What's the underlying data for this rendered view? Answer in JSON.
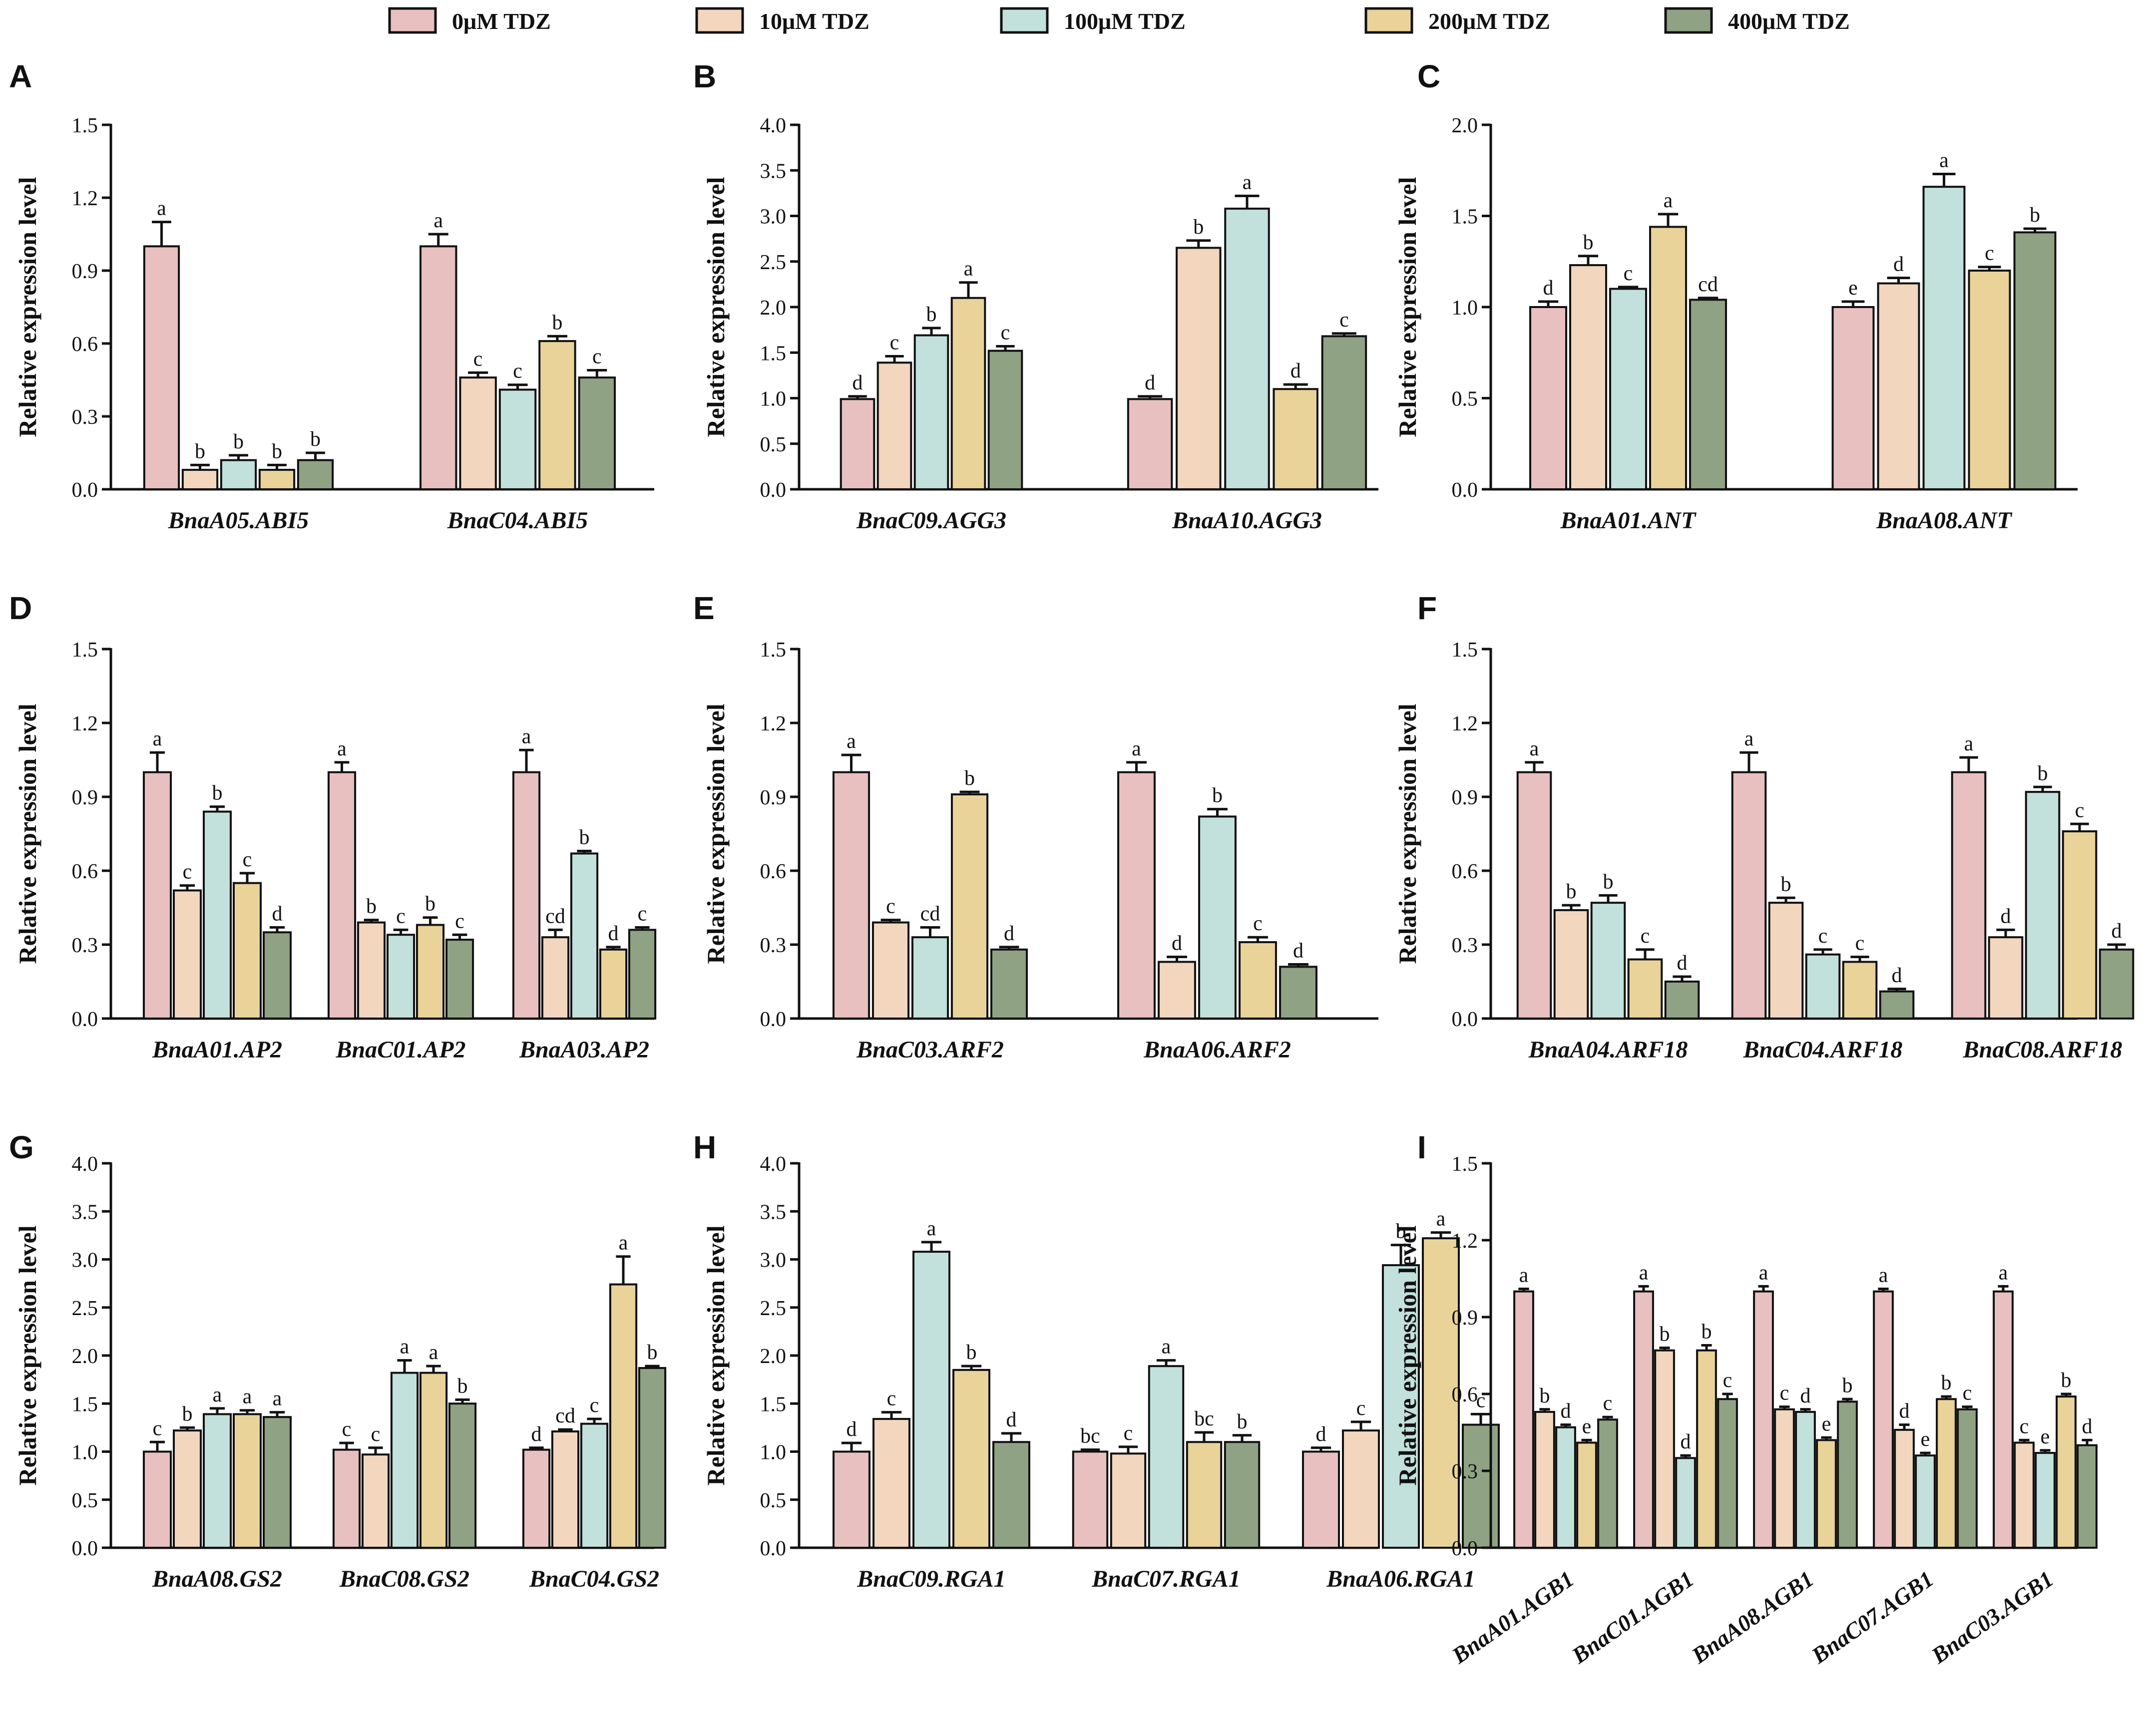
{
  "legend": [
    {
      "label": "0μM TDZ",
      "color": "#e8c0bf"
    },
    {
      "label": "10μM TDZ",
      "color": "#f2d6bd"
    },
    {
      "label": "100μM TDZ",
      "color": "#c2e0dc"
    },
    {
      "label": "200μM TDZ",
      "color": "#e9d399"
    },
    {
      "label": "400μM TDZ",
      "color": "#8fa283"
    }
  ],
  "chart_data": [
    {
      "panel": "A",
      "type": "bar",
      "ylabel": "Relative expression level",
      "ylim": [
        0,
        1.5
      ],
      "yticks": [
        "0.0",
        "0.3",
        "0.6",
        "0.9",
        "1.2",
        "1.5"
      ],
      "categories": [
        "BnaA05.ABI5",
        "BnaC04.ABI5"
      ],
      "rotated_labels": false,
      "values": [
        [
          1.0,
          0.08,
          0.12,
          0.08,
          0.12
        ],
        [
          1.0,
          0.46,
          0.41,
          0.61,
          0.46
        ]
      ],
      "errors": [
        [
          0.1,
          0.02,
          0.02,
          0.02,
          0.03
        ],
        [
          0.05,
          0.02,
          0.02,
          0.02,
          0.03
        ]
      ],
      "letters": [
        [
          "a",
          "b",
          "b",
          "b",
          "b"
        ],
        [
          "a",
          "c",
          "c",
          "b",
          "c"
        ]
      ]
    },
    {
      "panel": "B",
      "type": "bar",
      "ylabel": "Relative expression level",
      "ylim": [
        0,
        4.0
      ],
      "yticks": [
        "0.0",
        "0.5",
        "1.0",
        "1.5",
        "2.0",
        "2.5",
        "3.0",
        "3.5",
        "4.0"
      ],
      "categories": [
        "BnaC09.AGG3",
        "BnaA10.AGG3"
      ],
      "rotated_labels": false,
      "values": [
        [
          0.99,
          1.39,
          1.69,
          2.1,
          1.52
        ],
        [
          0.99,
          2.65,
          3.08,
          1.1,
          1.68
        ]
      ],
      "errors": [
        [
          0.03,
          0.07,
          0.08,
          0.17,
          0.05
        ],
        [
          0.03,
          0.08,
          0.14,
          0.05,
          0.03
        ]
      ],
      "letters": [
        [
          "d",
          "c",
          "b",
          "a",
          "c"
        ],
        [
          "d",
          "b",
          "a",
          "d",
          "c"
        ]
      ]
    },
    {
      "panel": "C",
      "type": "bar",
      "ylabel": "Relative expression level",
      "ylim": [
        0,
        2.0
      ],
      "yticks": [
        "0.0",
        "0.5",
        "1.0",
        "1.5",
        "2.0"
      ],
      "categories": [
        "BnaA01.ANT",
        "BnaA08.ANT"
      ],
      "rotated_labels": false,
      "values": [
        [
          1.0,
          1.23,
          1.1,
          1.44,
          1.04
        ],
        [
          1.0,
          1.13,
          1.66,
          1.2,
          1.41
        ]
      ],
      "errors": [
        [
          0.03,
          0.05,
          0.01,
          0.07,
          0.01
        ],
        [
          0.03,
          0.03,
          0.07,
          0.02,
          0.02
        ]
      ],
      "letters": [
        [
          "d",
          "b",
          "c",
          "a",
          "cd"
        ],
        [
          "e",
          "d",
          "a",
          "c",
          "b"
        ]
      ]
    },
    {
      "panel": "D",
      "type": "bar",
      "ylabel": "Relative expression level",
      "ylim": [
        0,
        1.5
      ],
      "yticks": [
        "0.0",
        "0.3",
        "0.6",
        "0.9",
        "1.2",
        "1.5"
      ],
      "categories": [
        "BnaA01.AP2",
        "BnaC01.AP2",
        "BnaA03.AP2"
      ],
      "rotated_labels": false,
      "values": [
        [
          1.0,
          0.52,
          0.84,
          0.55,
          0.35
        ],
        [
          1.0,
          0.39,
          0.34,
          0.38,
          0.32
        ],
        [
          1.0,
          0.33,
          0.67,
          0.28,
          0.36
        ]
      ],
      "errors": [
        [
          0.08,
          0.02,
          0.02,
          0.04,
          0.02
        ],
        [
          0.04,
          0.01,
          0.02,
          0.03,
          0.02
        ],
        [
          0.09,
          0.03,
          0.01,
          0.01,
          0.01
        ]
      ],
      "letters": [
        [
          "a",
          "c",
          "b",
          "c",
          "d"
        ],
        [
          "a",
          "b",
          "c",
          "b",
          "c"
        ],
        [
          "a",
          "cd",
          "b",
          "d",
          "c"
        ]
      ]
    },
    {
      "panel": "E",
      "type": "bar",
      "ylabel": "Relative expression level",
      "ylim": [
        0,
        1.5
      ],
      "yticks": [
        "0.0",
        "0.3",
        "0.6",
        "0.9",
        "1.2",
        "1.5"
      ],
      "categories": [
        "BnaC03.ARF2",
        "BnaA06.ARF2"
      ],
      "rotated_labels": false,
      "values": [
        [
          1.0,
          0.39,
          0.33,
          0.91,
          0.28
        ],
        [
          1.0,
          0.23,
          0.82,
          0.31,
          0.21
        ]
      ],
      "errors": [
        [
          0.07,
          0.01,
          0.04,
          0.01,
          0.01
        ],
        [
          0.04,
          0.02,
          0.03,
          0.02,
          0.01
        ]
      ],
      "letters": [
        [
          "a",
          "c",
          "cd",
          "b",
          "d"
        ],
        [
          "a",
          "d",
          "b",
          "c",
          "d"
        ]
      ]
    },
    {
      "panel": "F",
      "type": "bar",
      "ylabel": "Relative expression level",
      "ylim": [
        0,
        1.5
      ],
      "yticks": [
        "0.0",
        "0.3",
        "0.6",
        "0.9",
        "1.2",
        "1.5"
      ],
      "categories": [
        "BnaA04.ARF18",
        "BnaC04.ARF18",
        "BnaC08.ARF18"
      ],
      "rotated_labels": false,
      "values": [
        [
          1.0,
          0.44,
          0.47,
          0.24,
          0.15
        ],
        [
          1.0,
          0.47,
          0.26,
          0.23,
          0.11
        ],
        [
          1.0,
          0.33,
          0.92,
          0.76,
          0.28
        ]
      ],
      "errors": [
        [
          0.04,
          0.02,
          0.03,
          0.04,
          0.02
        ],
        [
          0.08,
          0.02,
          0.02,
          0.02,
          0.01
        ],
        [
          0.06,
          0.03,
          0.02,
          0.03,
          0.02
        ]
      ],
      "letters": [
        [
          "a",
          "b",
          "b",
          "c",
          "d"
        ],
        [
          "a",
          "b",
          "c",
          "c",
          "d"
        ],
        [
          "a",
          "d",
          "b",
          "c",
          "d"
        ]
      ]
    },
    {
      "panel": "G",
      "type": "bar",
      "ylabel": "Relative expression level",
      "ylim": [
        0,
        4.0
      ],
      "yticks": [
        "0.0",
        "0.5",
        "1.0",
        "1.5",
        "2.0",
        "2.5",
        "3.0",
        "3.5",
        "4.0"
      ],
      "categories": [
        "BnaA08.GS2",
        "BnaC08.GS2",
        "BnaC04.GS2"
      ],
      "rotated_labels": false,
      "values": [
        [
          1.0,
          1.22,
          1.39,
          1.39,
          1.36
        ],
        [
          1.02,
          0.97,
          1.82,
          1.82,
          1.5
        ],
        [
          1.02,
          1.21,
          1.29,
          2.74,
          1.87
        ]
      ],
      "errors": [
        [
          0.1,
          0.03,
          0.06,
          0.04,
          0.05
        ],
        [
          0.07,
          0.07,
          0.13,
          0.07,
          0.04
        ],
        [
          0.02,
          0.02,
          0.05,
          0.29,
          0.02
        ]
      ],
      "letters": [
        [
          "c",
          "b",
          "a",
          "a",
          "a"
        ],
        [
          "c",
          "c",
          "a",
          "a",
          "b"
        ],
        [
          "d",
          "cd",
          "c",
          "a",
          "b"
        ]
      ]
    },
    {
      "panel": "H",
      "type": "bar",
      "ylabel": "Relative expression level",
      "ylim": [
        0,
        4.0
      ],
      "yticks": [
        "0.0",
        "0.5",
        "1.0",
        "1.5",
        "2.0",
        "2.5",
        "3.0",
        "3.5",
        "4.0"
      ],
      "categories": [
        "BnaC09.RGA1",
        "BnaC07.RGA1",
        "BnaA06.RGA1"
      ],
      "rotated_labels": false,
      "values": [
        [
          1.0,
          1.34,
          3.08,
          1.85,
          1.1
        ],
        [
          1.0,
          0.98,
          1.89,
          1.1,
          1.1
        ],
        [
          1.0,
          1.22,
          2.94,
          3.22,
          1.28
        ]
      ],
      "errors": [
        [
          0.09,
          0.07,
          0.1,
          0.04,
          0.09
        ],
        [
          0.02,
          0.07,
          0.06,
          0.1,
          0.07
        ],
        [
          0.04,
          0.09,
          0.21,
          0.06,
          0.11
        ]
      ],
      "letters": [
        [
          "d",
          "c",
          "a",
          "b",
          "d"
        ],
        [
          "bc",
          "c",
          "a",
          "bc",
          "b"
        ],
        [
          "d",
          "c",
          "b",
          "a",
          "c"
        ]
      ]
    },
    {
      "panel": "I",
      "type": "bar",
      "ylabel": "Relative expression level",
      "ylim": [
        0,
        1.5
      ],
      "yticks": [
        "0.0",
        "0.3",
        "0.6",
        "0.9",
        "1.2",
        "1.5"
      ],
      "categories": [
        "BnaA01.AGB1",
        "BnaC01.AGB1",
        "BnaA08.AGB1",
        "BnaC07.AGB1",
        "BnaC03.AGB1"
      ],
      "rotated_labels": true,
      "values": [
        [
          1.0,
          0.53,
          0.47,
          0.41,
          0.5
        ],
        [
          1.0,
          0.77,
          0.35,
          0.77,
          0.58
        ],
        [
          1.0,
          0.54,
          0.53,
          0.42,
          0.57
        ],
        [
          1.0,
          0.46,
          0.36,
          0.58,
          0.54
        ],
        [
          1.0,
          0.41,
          0.37,
          0.59,
          0.4
        ]
      ],
      "errors": [
        [
          0.01,
          0.01,
          0.01,
          0.01,
          0.01
        ],
        [
          0.02,
          0.01,
          0.01,
          0.02,
          0.02
        ],
        [
          0.02,
          0.01,
          0.01,
          0.01,
          0.01
        ],
        [
          0.01,
          0.02,
          0.01,
          0.01,
          0.01
        ],
        [
          0.02,
          0.01,
          0.01,
          0.01,
          0.02
        ]
      ],
      "letters": [
        [
          "a",
          "b",
          "d",
          "e",
          "c"
        ],
        [
          "a",
          "b",
          "d",
          "b",
          "c"
        ],
        [
          "a",
          "c",
          "d",
          "e",
          "b"
        ],
        [
          "a",
          "d",
          "e",
          "b",
          "c"
        ],
        [
          "a",
          "c",
          "e",
          "b",
          "d"
        ]
      ]
    }
  ]
}
